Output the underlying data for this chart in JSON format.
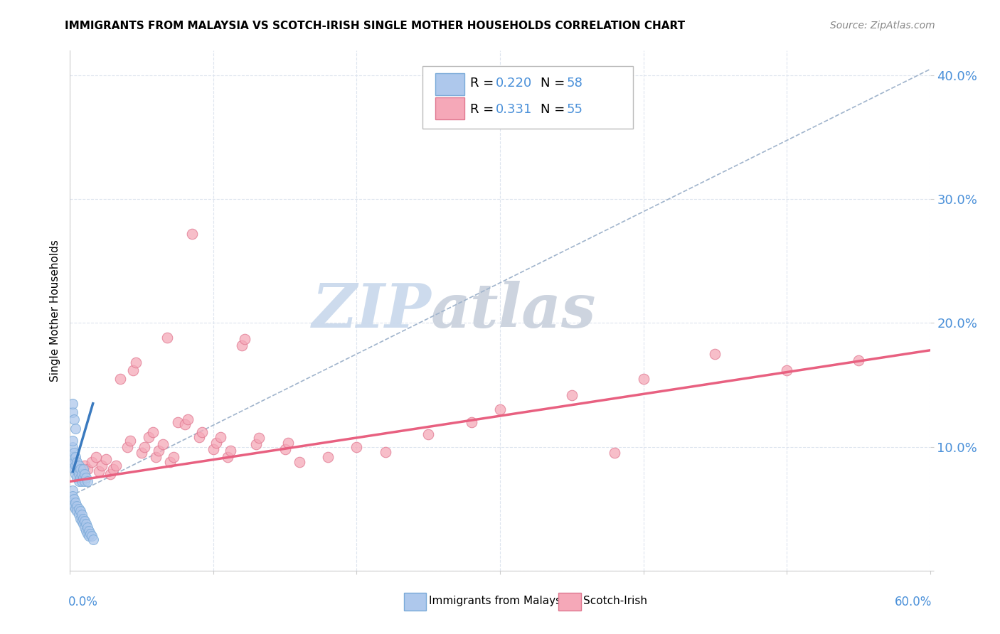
{
  "title": "IMMIGRANTS FROM MALAYSIA VS SCOTCH-IRISH SINGLE MOTHER HOUSEHOLDS CORRELATION CHART",
  "source": "Source: ZipAtlas.com",
  "ylabel": "Single Mother Households",
  "blue_color": "#aec8ec",
  "blue_edge_color": "#7aaad8",
  "pink_color": "#f5a8b8",
  "pink_edge_color": "#e07890",
  "blue_line_color": "#3a7abf",
  "pink_line_color": "#e86080",
  "dash_line_color": "#a0b4cc",
  "grid_color": "#dde4ee",
  "tick_color": "#4a90d9",
  "bg_color": "#ffffff",
  "watermark_color": "#ccdcee",
  "malaysia_pts": [
    [
      0.002,
      0.085
    ],
    [
      0.002,
      0.092
    ],
    [
      0.002,
      0.1
    ],
    [
      0.002,
      0.105
    ],
    [
      0.003,
      0.082
    ],
    [
      0.003,
      0.088
    ],
    [
      0.003,
      0.095
    ],
    [
      0.004,
      0.078
    ],
    [
      0.004,
      0.085
    ],
    [
      0.004,
      0.092
    ],
    [
      0.005,
      0.075
    ],
    [
      0.005,
      0.082
    ],
    [
      0.005,
      0.088
    ],
    [
      0.006,
      0.072
    ],
    [
      0.006,
      0.078
    ],
    [
      0.006,
      0.085
    ],
    [
      0.007,
      0.075
    ],
    [
      0.007,
      0.082
    ],
    [
      0.008,
      0.072
    ],
    [
      0.008,
      0.078
    ],
    [
      0.009,
      0.075
    ],
    [
      0.009,
      0.082
    ],
    [
      0.01,
      0.072
    ],
    [
      0.01,
      0.078
    ],
    [
      0.011,
      0.075
    ],
    [
      0.012,
      0.072
    ],
    [
      0.002,
      0.065
    ],
    [
      0.002,
      0.06
    ],
    [
      0.002,
      0.055
    ],
    [
      0.003,
      0.058
    ],
    [
      0.003,
      0.052
    ],
    [
      0.004,
      0.055
    ],
    [
      0.004,
      0.05
    ],
    [
      0.005,
      0.052
    ],
    [
      0.005,
      0.048
    ],
    [
      0.006,
      0.05
    ],
    [
      0.006,
      0.045
    ],
    [
      0.007,
      0.048
    ],
    [
      0.007,
      0.042
    ],
    [
      0.008,
      0.045
    ],
    [
      0.008,
      0.04
    ],
    [
      0.009,
      0.042
    ],
    [
      0.009,
      0.038
    ],
    [
      0.01,
      0.04
    ],
    [
      0.01,
      0.035
    ],
    [
      0.011,
      0.038
    ],
    [
      0.011,
      0.032
    ],
    [
      0.012,
      0.035
    ],
    [
      0.012,
      0.03
    ],
    [
      0.013,
      0.032
    ],
    [
      0.013,
      0.028
    ],
    [
      0.014,
      0.03
    ],
    [
      0.015,
      0.028
    ],
    [
      0.016,
      0.025
    ],
    [
      0.002,
      0.128
    ],
    [
      0.002,
      0.135
    ],
    [
      0.003,
      0.122
    ],
    [
      0.004,
      0.115
    ]
  ],
  "scotch_pts": [
    [
      0.01,
      0.085
    ],
    [
      0.012,
      0.082
    ],
    [
      0.015,
      0.088
    ],
    [
      0.018,
      0.092
    ],
    [
      0.02,
      0.08
    ],
    [
      0.022,
      0.085
    ],
    [
      0.025,
      0.09
    ],
    [
      0.028,
      0.078
    ],
    [
      0.03,
      0.082
    ],
    [
      0.032,
      0.085
    ],
    [
      0.035,
      0.155
    ],
    [
      0.04,
      0.1
    ],
    [
      0.042,
      0.105
    ],
    [
      0.044,
      0.162
    ],
    [
      0.046,
      0.168
    ],
    [
      0.05,
      0.095
    ],
    [
      0.052,
      0.1
    ],
    [
      0.055,
      0.108
    ],
    [
      0.058,
      0.112
    ],
    [
      0.06,
      0.092
    ],
    [
      0.062,
      0.097
    ],
    [
      0.065,
      0.102
    ],
    [
      0.068,
      0.188
    ],
    [
      0.07,
      0.088
    ],
    [
      0.072,
      0.092
    ],
    [
      0.075,
      0.12
    ],
    [
      0.08,
      0.118
    ],
    [
      0.082,
      0.122
    ],
    [
      0.085,
      0.272
    ],
    [
      0.09,
      0.108
    ],
    [
      0.092,
      0.112
    ],
    [
      0.1,
      0.098
    ],
    [
      0.102,
      0.103
    ],
    [
      0.105,
      0.108
    ],
    [
      0.11,
      0.092
    ],
    [
      0.112,
      0.097
    ],
    [
      0.12,
      0.182
    ],
    [
      0.122,
      0.187
    ],
    [
      0.13,
      0.102
    ],
    [
      0.132,
      0.107
    ],
    [
      0.15,
      0.098
    ],
    [
      0.152,
      0.103
    ],
    [
      0.16,
      0.088
    ],
    [
      0.18,
      0.092
    ],
    [
      0.2,
      0.1
    ],
    [
      0.22,
      0.096
    ],
    [
      0.25,
      0.11
    ],
    [
      0.28,
      0.12
    ],
    [
      0.3,
      0.13
    ],
    [
      0.35,
      0.142
    ],
    [
      0.38,
      0.095
    ],
    [
      0.4,
      0.155
    ],
    [
      0.45,
      0.175
    ],
    [
      0.5,
      0.162
    ],
    [
      0.55,
      0.17
    ]
  ],
  "malaysia_trend_x": [
    0.002,
    0.016
  ],
  "malaysia_trend_y": [
    0.08,
    0.135
  ],
  "scotch_trend_x": [
    0.0,
    0.6
  ],
  "scotch_trend_y": [
    0.072,
    0.178
  ],
  "dash_trend_x": [
    0.0,
    0.6
  ],
  "dash_trend_y": [
    0.06,
    0.405
  ],
  "xlim": [
    0.0,
    0.6
  ],
  "ylim": [
    0.0,
    0.42
  ],
  "xticks": [
    0.0,
    0.1,
    0.2,
    0.3,
    0.4,
    0.5,
    0.6
  ],
  "yticks": [
    0.0,
    0.1,
    0.2,
    0.3,
    0.4
  ],
  "ytick_labels": [
    "",
    "10.0%",
    "20.0%",
    "30.0%",
    "40.0%"
  ]
}
